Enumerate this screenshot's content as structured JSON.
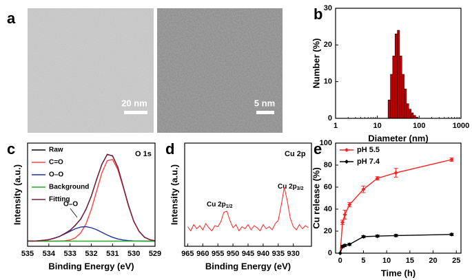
{
  "panel_a": {
    "label": "a",
    "scale_bars": [
      "20 nm",
      "5 nm"
    ]
  },
  "chart_data": [
    {
      "type": "histogram",
      "panel_label": "b",
      "xlabel": "Diameter (nm)",
      "ylabel": "Number (%)",
      "log_x": true,
      "xlim": [
        1,
        1000
      ],
      "xticks": [
        1,
        10,
        100,
        1000
      ],
      "ylim": [
        0,
        30
      ],
      "yticks": [
        0,
        10,
        20,
        30
      ],
      "color": "#c00000",
      "edgecolor": "#3a0000",
      "bins": [
        18,
        20.5,
        23.2,
        26.4,
        30,
        34,
        38.6,
        43.8,
        49.7,
        56.4,
        64,
        72.7,
        82.5,
        93.6
      ],
      "values": [
        5,
        12,
        17,
        23,
        24,
        17,
        12,
        8,
        4,
        2.5,
        1.5,
        0.8,
        0.3
      ]
    },
    {
      "type": "line",
      "panel_label": "c",
      "xlabel": "Binding Energy (eV)",
      "ylabel": "Intensity (a.u.)",
      "xlim": [
        535,
        529
      ],
      "xticks": [
        535,
        534,
        533,
        532,
        531,
        530,
        529
      ],
      "ylim": [
        0,
        100
      ],
      "legend": "upper left",
      "annotations": [
        {
          "text": "O 1s"
        },
        {
          "text": "O–O"
        }
      ],
      "x": [
        535,
        534.75,
        534.5,
        534.25,
        534,
        533.75,
        533.5,
        533.25,
        533,
        532.75,
        532.5,
        532.25,
        532,
        531.75,
        531.5,
        531.25,
        531,
        530.75,
        530.5,
        530.25,
        530,
        529.75,
        529.5,
        529.25,
        529
      ],
      "series": [
        {
          "name": "Raw",
          "color": "#000000",
          "values": [
            5.3,
            5.0,
            5.4,
            5.9,
            6.4,
            7.9,
            9.5,
            12.4,
            15.4,
            20.5,
            26.3,
            36.0,
            48.5,
            64.9,
            79.4,
            89.1,
            87.5,
            76.6,
            58.0,
            39.8,
            24.0,
            14.6,
            8.7,
            6.5,
            5.3
          ]
        },
        {
          "name": "C=O",
          "color": "#ff4040",
          "values": [
            5,
            5,
            5,
            5,
            5,
            5,
            5.1,
            5.3,
            6.1,
            8.2,
            12.9,
            21.7,
            35.7,
            53.5,
            71.2,
            82.9,
            84.1,
            74.2,
            57.2,
            39.0,
            24.1,
            14.3,
            8.9,
            6.4,
            5.4
          ]
        },
        {
          "name": "O–O",
          "color": "#1f2fa8",
          "values": [
            5.1,
            5.1,
            5.3,
            5.7,
            6.5,
            7.7,
            9.5,
            11.9,
            14.5,
            17,
            18.6,
            19,
            18,
            16.1,
            13.5,
            10.9,
            8.7,
            7.1,
            6.1,
            5.5,
            5.2,
            5.1,
            5,
            5,
            5
          ]
        },
        {
          "name": "Background",
          "color": "#22aa22",
          "values": [
            5,
            5,
            5,
            5,
            5,
            5,
            5,
            5,
            5,
            5,
            5,
            5,
            5,
            5,
            5,
            5,
            5,
            5,
            5,
            5,
            5,
            5,
            5,
            5,
            5
          ]
        },
        {
          "name": "Fitting",
          "color": "#7a1f3d",
          "values": [
            5.1,
            5.1,
            5.3,
            5.7,
            6.5,
            7.7,
            9.6,
            12.2,
            15.6,
            20.2,
            26.5,
            35.7,
            48.7,
            64.6,
            79.7,
            88.8,
            87.8,
            76.3,
            58.3,
            39.5,
            24.3,
            14.4,
            8.9,
            6.4,
            5.4
          ]
        }
      ]
    },
    {
      "type": "line",
      "panel_label": "d",
      "xlabel": "Binding Energy (eV)",
      "ylabel": "Intensity (a.u.)",
      "xlim": [
        966,
        924
      ],
      "xticks": [
        965,
        960,
        955,
        950,
        945,
        940,
        935,
        930
      ],
      "ylim": [
        0,
        100
      ],
      "annotations": [
        {
          "text": "Cu 2p"
        },
        {
          "text": "Cu 2p",
          "sub": "1/2"
        },
        {
          "text": "Cu 2p",
          "sub": "3/2"
        }
      ],
      "x": [
        965,
        964,
        963,
        962,
        961,
        960,
        959,
        958,
        957,
        956,
        955,
        954,
        953,
        952,
        951,
        950,
        949,
        948,
        947,
        946,
        945,
        944,
        943,
        942,
        941,
        940,
        939,
        938,
        937,
        936,
        935,
        934,
        933,
        932,
        931,
        930,
        929,
        928,
        927,
        926,
        925
      ],
      "series": [
        {
          "color": "#ff2020",
          "values": [
            19,
            15,
            21,
            17,
            20,
            16,
            22,
            18,
            15,
            20,
            19,
            24,
            33,
            34,
            25,
            18,
            21,
            15,
            19,
            17,
            21,
            16,
            20,
            18,
            15,
            21,
            17,
            19,
            16,
            22,
            25,
            40,
            57,
            44,
            27,
            19,
            16,
            21,
            17,
            20,
            18
          ]
        }
      ]
    },
    {
      "type": "line",
      "panel_label": "e",
      "xlabel": "Time (h)",
      "ylabel": "Cu release (%)",
      "xlim": [
        -1,
        26
      ],
      "xticks": [
        0,
        5,
        10,
        15,
        20,
        25
      ],
      "ylim": [
        0,
        100
      ],
      "yticks": [
        0,
        20,
        40,
        60,
        80,
        100
      ],
      "legend": "upper left",
      "markers": "diamond",
      "x": [
        0,
        0.5,
        1,
        2,
        5,
        8,
        12,
        24
      ],
      "series": [
        {
          "name": "pH 5.5",
          "color": "#ff2020",
          "values": [
            0,
            28,
            35,
            44,
            58,
            68,
            73,
            85
          ],
          "errors": [
            0,
            2,
            4,
            2,
            3,
            1.5,
            4,
            1.5
          ]
        },
        {
          "name": "pH 7.4",
          "color": "#000000",
          "values": [
            0,
            6,
            7,
            8,
            15,
            15.5,
            16,
            17
          ],
          "errors": [
            0,
            1,
            1,
            1,
            1,
            1,
            1,
            1
          ]
        }
      ]
    }
  ]
}
